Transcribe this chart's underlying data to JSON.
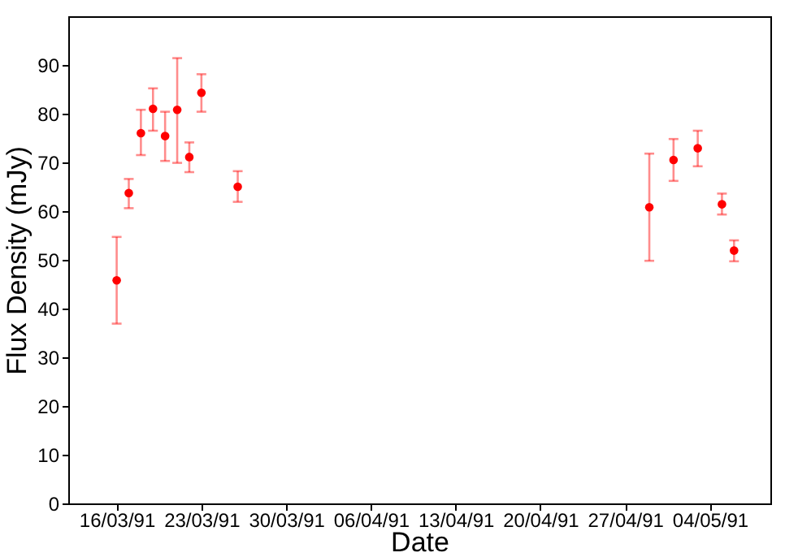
{
  "chart_data": {
    "type": "scatter",
    "xlabel": "Date",
    "ylabel": "Flux Density (mJy)",
    "x": [
      "1991-03-16",
      "1991-03-17",
      "1991-03-18",
      "1991-03-19",
      "1991-03-20",
      "1991-03-21",
      "1991-03-22",
      "1991-03-23",
      "1991-03-26",
      "1991-04-29",
      "1991-05-01",
      "1991-05-03",
      "1991-05-05",
      "1991-05-06"
    ],
    "series": [
      {
        "color": "#ff0000",
        "values": [
          45.8,
          63.7,
          76.0,
          81.0,
          75.4,
          80.8,
          71.1,
          84.3,
          65.0,
          60.8,
          70.5,
          72.9,
          61.4,
          51.9
        ],
        "errors": [
          [
            36.9,
            54.7
          ],
          [
            60.6,
            66.6
          ],
          [
            71.5,
            80.8
          ],
          [
            76.5,
            85.2
          ],
          [
            70.3,
            80.4
          ],
          [
            69.9,
            91.4
          ],
          [
            68.0,
            74.1
          ],
          [
            80.4,
            88.1
          ],
          [
            61.9,
            68.2
          ],
          [
            49.8,
            71.8
          ],
          [
            66.2,
            74.8
          ],
          [
            69.2,
            76.5
          ],
          [
            59.3,
            63.6
          ],
          [
            49.7,
            54.0
          ]
        ]
      }
    ],
    "xlim": [
      "1991-03-12",
      "1991-05-09"
    ],
    "xticks": [
      {
        "value": "1991-03-16",
        "label": "16/03/91"
      },
      {
        "value": "1991-03-23",
        "label": "23/03/91"
      },
      {
        "value": "1991-03-30",
        "label": "30/03/91"
      },
      {
        "value": "1991-04-06",
        "label": "06/04/91"
      },
      {
        "value": "1991-04-13",
        "label": "13/04/91"
      },
      {
        "value": "1991-04-20",
        "label": "20/04/91"
      },
      {
        "value": "1991-04-27",
        "label": "27/04/91"
      },
      {
        "value": "1991-05-04",
        "label": "04/05/91"
      }
    ],
    "ylim": [
      0,
      100
    ],
    "yticks": [
      0,
      10,
      20,
      30,
      40,
      50,
      60,
      70,
      80,
      90
    ],
    "marker": "circle"
  }
}
